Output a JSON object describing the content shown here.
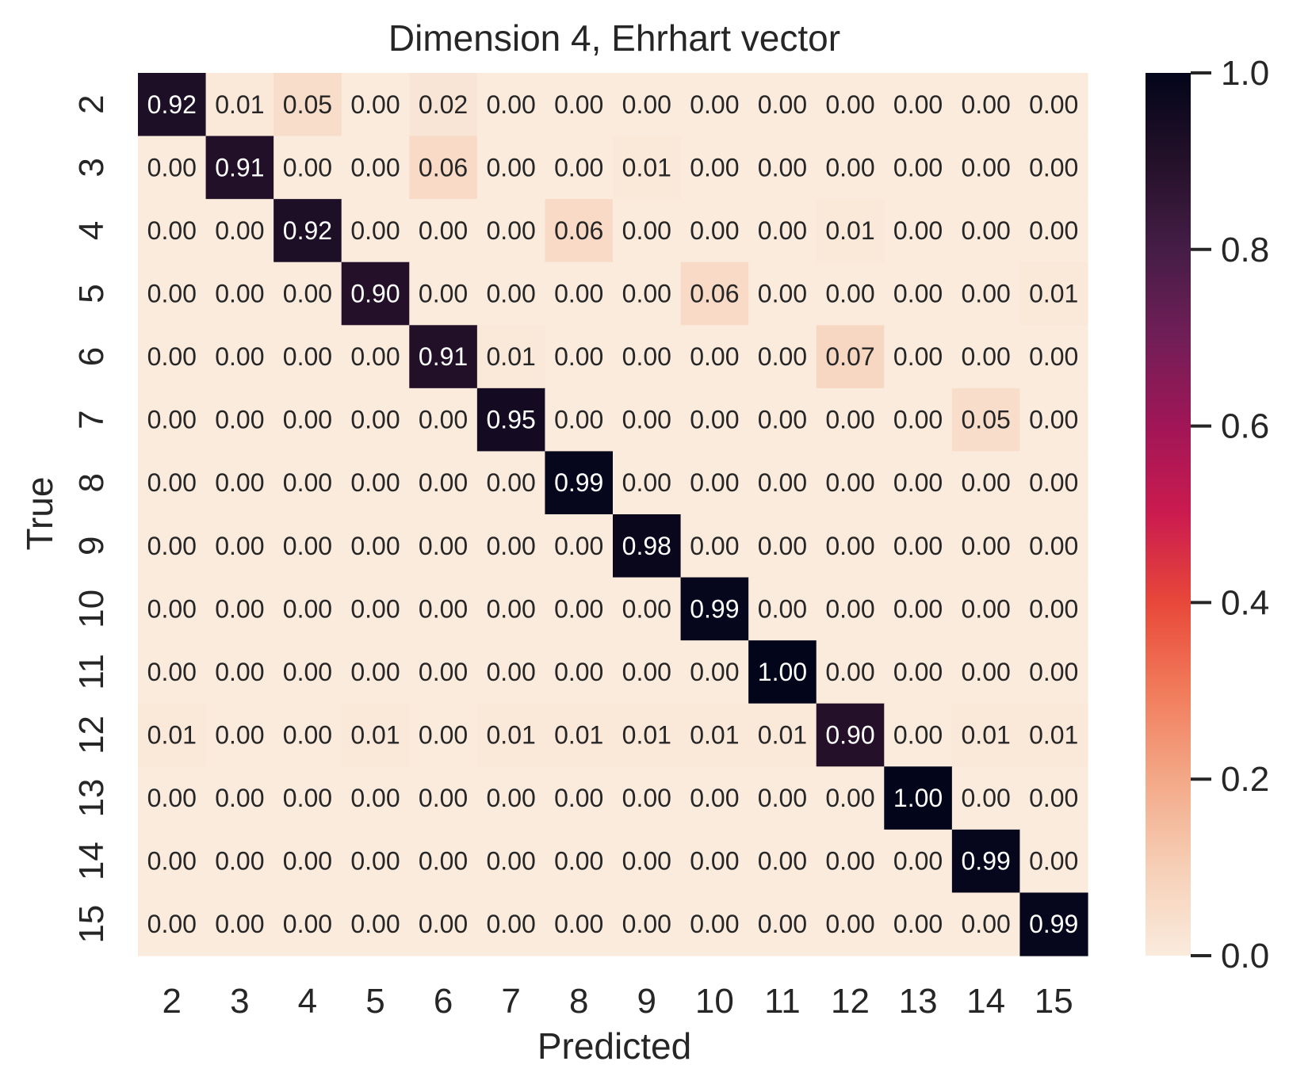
{
  "chart_data": {
    "type": "heatmap",
    "title": "Dimension 4, Ehrhart vector",
    "xlabel": "Predicted",
    "ylabel": "True",
    "x_categories": [
      "2",
      "3",
      "4",
      "5",
      "6",
      "7",
      "8",
      "9",
      "10",
      "11",
      "12",
      "13",
      "14",
      "15"
    ],
    "y_categories": [
      "2",
      "3",
      "4",
      "5",
      "6",
      "7",
      "8",
      "9",
      "10",
      "11",
      "12",
      "13",
      "14",
      "15"
    ],
    "values": [
      [
        "0.92",
        "0.01",
        "0.05",
        "0.00",
        "0.02",
        "0.00",
        "0.00",
        "0.00",
        "0.00",
        "0.00",
        "0.00",
        "0.00",
        "0.00",
        "0.00"
      ],
      [
        "0.00",
        "0.91",
        "0.00",
        "0.00",
        "0.06",
        "0.00",
        "0.00",
        "0.01",
        "0.00",
        "0.00",
        "0.00",
        "0.00",
        "0.00",
        "0.00"
      ],
      [
        "0.00",
        "0.00",
        "0.92",
        "0.00",
        "0.00",
        "0.00",
        "0.06",
        "0.00",
        "0.00",
        "0.00",
        "0.01",
        "0.00",
        "0.00",
        "0.00"
      ],
      [
        "0.00",
        "0.00",
        "0.00",
        "0.90",
        "0.00",
        "0.00",
        "0.00",
        "0.00",
        "0.06",
        "0.00",
        "0.00",
        "0.00",
        "0.00",
        "0.01"
      ],
      [
        "0.00",
        "0.00",
        "0.00",
        "0.00",
        "0.91",
        "0.01",
        "0.00",
        "0.00",
        "0.00",
        "0.00",
        "0.07",
        "0.00",
        "0.00",
        "0.00"
      ],
      [
        "0.00",
        "0.00",
        "0.00",
        "0.00",
        "0.00",
        "0.95",
        "0.00",
        "0.00",
        "0.00",
        "0.00",
        "0.00",
        "0.00",
        "0.05",
        "0.00"
      ],
      [
        "0.00",
        "0.00",
        "0.00",
        "0.00",
        "0.00",
        "0.00",
        "0.99",
        "0.00",
        "0.00",
        "0.00",
        "0.00",
        "0.00",
        "0.00",
        "0.00"
      ],
      [
        "0.00",
        "0.00",
        "0.00",
        "0.00",
        "0.00",
        "0.00",
        "0.00",
        "0.98",
        "0.00",
        "0.00",
        "0.00",
        "0.00",
        "0.00",
        "0.00"
      ],
      [
        "0.00",
        "0.00",
        "0.00",
        "0.00",
        "0.00",
        "0.00",
        "0.00",
        "0.00",
        "0.99",
        "0.00",
        "0.00",
        "0.00",
        "0.00",
        "0.00"
      ],
      [
        "0.00",
        "0.00",
        "0.00",
        "0.00",
        "0.00",
        "0.00",
        "0.00",
        "0.00",
        "0.00",
        "1.00",
        "0.00",
        "0.00",
        "0.00",
        "0.00"
      ],
      [
        "0.01",
        "0.00",
        "0.00",
        "0.01",
        "0.00",
        "0.01",
        "0.01",
        "0.01",
        "0.01",
        "0.01",
        "0.90",
        "0.00",
        "0.01",
        "0.01"
      ],
      [
        "0.00",
        "0.00",
        "0.00",
        "0.00",
        "0.00",
        "0.00",
        "0.00",
        "0.00",
        "0.00",
        "0.00",
        "0.00",
        "1.00",
        "0.00",
        "0.00"
      ],
      [
        "0.00",
        "0.00",
        "0.00",
        "0.00",
        "0.00",
        "0.00",
        "0.00",
        "0.00",
        "0.00",
        "0.00",
        "0.00",
        "0.00",
        "0.99",
        "0.00"
      ],
      [
        "0.00",
        "0.00",
        "0.00",
        "0.00",
        "0.00",
        "0.00",
        "0.00",
        "0.00",
        "0.00",
        "0.00",
        "0.00",
        "0.00",
        "0.00",
        "0.99"
      ]
    ],
    "colorbar": {
      "range": [
        0.0,
        1.0
      ],
      "ticks": [
        "0.0",
        "0.2",
        "0.4",
        "0.6",
        "0.8",
        "1.0"
      ],
      "colormap": "rocket_r"
    },
    "grid": false
  }
}
